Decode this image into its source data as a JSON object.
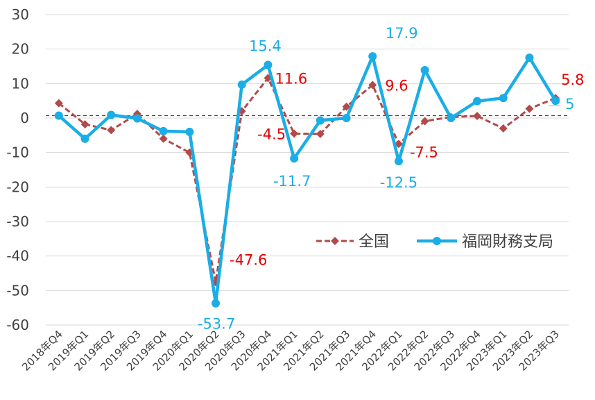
{
  "chart_data": {
    "type": "line",
    "categories": [
      "2018年Q4",
      "2019年Q1",
      "2019年Q2",
      "2019年Q3",
      "2019年Q4",
      "2020年Q1",
      "2020年Q2",
      "2020年Q3",
      "2020年Q4",
      "2021年Q1",
      "2021年Q2",
      "2021年Q3",
      "2021年Q4",
      "2022年Q1",
      "2022年Q2",
      "2022年Q3",
      "2022年Q4",
      "2023年Q1",
      "2023年Q2",
      "2023年Q3"
    ],
    "series": [
      {
        "name": "全国",
        "color": "#b24a4a",
        "style": "dashed-diamond",
        "values": [
          4.3,
          -1.8,
          -3.5,
          1.2,
          -6.0,
          -10.0,
          -47.6,
          2.0,
          11.6,
          -4.5,
          -4.6,
          3.3,
          9.6,
          -7.5,
          -0.9,
          0.3,
          0.6,
          -3.0,
          2.7,
          5.8
        ]
      },
      {
        "name": "福岡財務支局",
        "color": "#1aade6",
        "style": "solid-circle",
        "values": [
          0.7,
          -6.0,
          0.9,
          -0.1,
          -3.8,
          -4.0,
          -53.7,
          9.7,
          15.4,
          -11.7,
          -0.7,
          0.0,
          17.9,
          -12.5,
          13.9,
          0.0,
          4.9,
          5.8,
          17.5,
          5.0
        ]
      }
    ],
    "data_labels": [
      {
        "series": 0,
        "index": 6,
        "text": "-47.6"
      },
      {
        "series": 0,
        "index": 8,
        "text": "11.6"
      },
      {
        "series": 0,
        "index": 9,
        "text": "-4.5"
      },
      {
        "series": 0,
        "index": 12,
        "text": "9.6"
      },
      {
        "series": 0,
        "index": 13,
        "text": "-7.5"
      },
      {
        "series": 0,
        "index": 19,
        "text": "5.8"
      },
      {
        "series": 1,
        "index": 6,
        "text": "-53.7"
      },
      {
        "series": 1,
        "index": 8,
        "text": "15.4"
      },
      {
        "series": 1,
        "index": 9,
        "text": "-11.7"
      },
      {
        "series": 1,
        "index": 12,
        "text": "17.9"
      },
      {
        "series": 1,
        "index": 13,
        "text": "-12.5"
      },
      {
        "series": 1,
        "index": 19,
        "text": "5"
      }
    ],
    "label_colors": [
      "#e60000",
      "#1aade6"
    ],
    "reference_line": {
      "value": 0.7,
      "color": "#e60000",
      "style": "dashed"
    },
    "ylim": [
      -60,
      30
    ],
    "yticks": [
      30,
      20,
      10,
      0,
      -10,
      -20,
      -30,
      -40,
      -50,
      -60
    ],
    "grid": true,
    "legend_position": "lower-right"
  }
}
